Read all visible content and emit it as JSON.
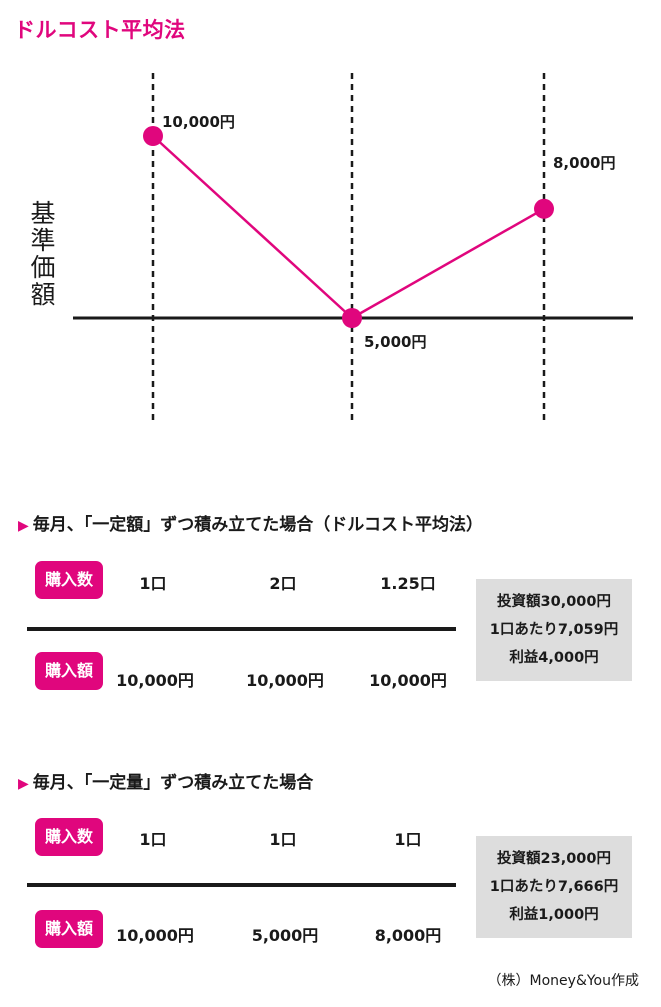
{
  "title": "ドルコスト平均法",
  "chart_data": {
    "type": "line",
    "ylabel": "基準価額",
    "points": [
      {
        "label": "10,000円",
        "value": 10000
      },
      {
        "label": "5,000円",
        "value": 5000
      },
      {
        "label": "8,000円",
        "value": 8000
      }
    ],
    "line_color": "#e0067d"
  },
  "section1": {
    "title": "毎月、「一定額」ずつ積み立てた場合（ドルコスト平均法）",
    "row1_label": "購入数",
    "row1": [
      "1口",
      "2口",
      "1.25口"
    ],
    "row2_label": "購入額",
    "row2": [
      "10,000円",
      "10,000円",
      "10,000円"
    ],
    "summary": [
      "投資額30,000円",
      "1口あたり7,059円",
      "利益4,000円"
    ]
  },
  "section2": {
    "title": "毎月、「一定量」ずつ積み立てた場合",
    "row1_label": "購入数",
    "row1": [
      "1口",
      "1口",
      "1口"
    ],
    "row2_label": "購入額",
    "row2": [
      "10,000円",
      "5,000円",
      "8,000円"
    ],
    "summary": [
      "投資額23,000円",
      "1口あたり7,666円",
      "利益1,000円"
    ]
  },
  "credit": "（株）Money&You作成",
  "accent_color": "#e0067d"
}
